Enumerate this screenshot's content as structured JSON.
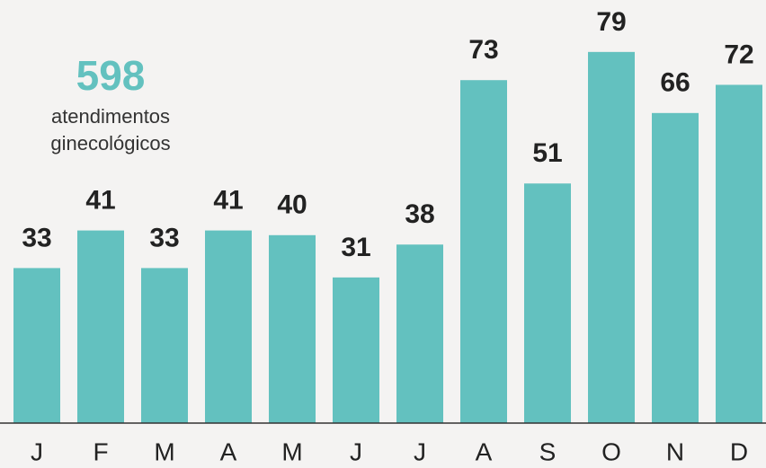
{
  "chart_data": {
    "type": "bar",
    "categories": [
      "J",
      "F",
      "M",
      "A",
      "M",
      "J",
      "J",
      "A",
      "S",
      "O",
      "N",
      "D"
    ],
    "values": [
      33,
      41,
      33,
      41,
      40,
      31,
      38,
      73,
      51,
      79,
      66,
      72
    ],
    "color": "#63c1bf",
    "total": 598,
    "total_caption": [
      "atendimentos",
      "ginecológicos"
    ]
  }
}
